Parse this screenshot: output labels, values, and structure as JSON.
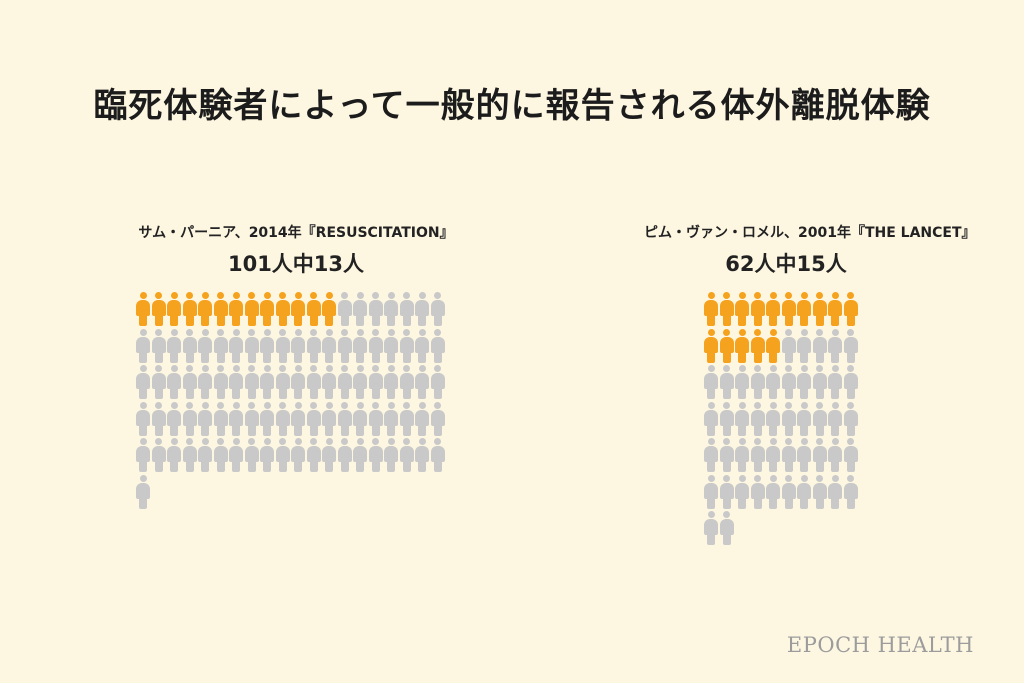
{
  "title": "臨死体験者によって一般的に報告される体外離脱体験",
  "logo": "EPOCH HEALTH",
  "colors": {
    "highlight": "#f5a21f",
    "base": "#c9c9c9",
    "background": "#fdf7e2"
  },
  "chart_data": [
    {
      "type": "pictogram",
      "source": "サム・パーニア、2014年『RESUSCITATION』",
      "ratio_label": "101人中13人",
      "total": 101,
      "highlighted": 13,
      "columns": 20
    },
    {
      "type": "pictogram",
      "source": "ピム・ヴァン・ロメル、2001年『THE LANCET』",
      "ratio_label": "62人中15人",
      "total": 62,
      "highlighted": 15,
      "columns": 10
    }
  ]
}
